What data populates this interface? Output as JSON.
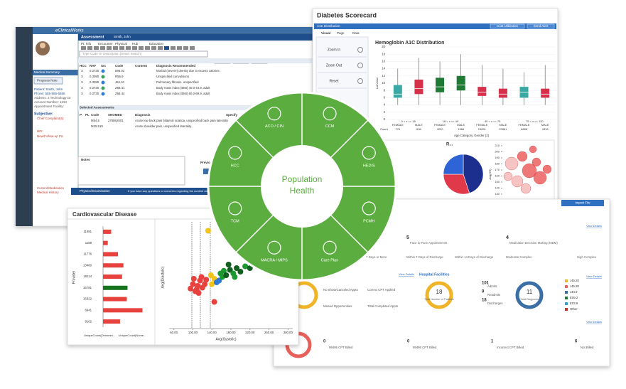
{
  "wheel": {
    "center": [
      "Population",
      "Health"
    ],
    "segments": [
      "ACO / CIN",
      "CCM",
      "HEDIS",
      "PCMH",
      "Care Plan",
      "MACRA / MIPS",
      "TCM",
      "HCC"
    ]
  },
  "ehr": {
    "app": "eClinicalWorks",
    "window": "Assessment",
    "patient_name": "Smith, John",
    "menu": [
      "Pt. Info",
      "Encounter",
      "Physical",
      "Hub",
      "Education"
    ],
    "search": "Type Code Or Description [Smart Search]",
    "nav": [
      "Prev Dx",
      "PL",
      "Copy"
    ],
    "columns": [
      "HCC",
      "RAF",
      "Src",
      "Code",
      "Content",
      "Diagnosis Recommended"
    ],
    "rows": [
      [
        "X",
        "0.2730",
        "596.01",
        "Morbid (severe) obesity due to excess calories"
      ],
      [
        "X",
        "0.3090",
        "R56.9",
        "Unspecified convulsions"
      ],
      [
        "X",
        "0.3090",
        "J84.10",
        "Pulmonary fibrosis, unspecified"
      ],
      [
        "X",
        "0.2730",
        "Z68.41",
        "Body mass index (BMI) 40.0-44.9, adult"
      ],
      [
        "X",
        "0.2730",
        "Z68.44",
        "Body mass index (BMI) 60.0-69.9, adult"
      ]
    ],
    "selected_title": "Selected Assessments",
    "selected_columns": [
      "P",
      "PL",
      "Code",
      "SNOMED",
      "Diagnosis",
      "Specify"
    ],
    "selected_rows": [
      [
        "M54.5",
        "278862001",
        "Acute low back pain bilateral sciatica, unspecified back pain laterality"
      ],
      [
        "M25.519",
        "",
        "Acute shoulder pain, unspecified laterality"
      ]
    ],
    "tabs": [
      "Medical Summary",
      "Progress Note"
    ],
    "patient": [
      "Patient: Smith, John",
      "Phone: 555-555-5555",
      "Address: 2 Technology Dr",
      "Account Number: 1234",
      "Appointment Facility:"
    ],
    "subjective": "Subjective:",
    "chief": "Chief Complaint(s):",
    "hpi": "HPI:",
    "followup": "New/Follow-up Pa",
    "history": [
      "Current Medication",
      "Medical History"
    ],
    "notes": "Notes",
    "previous": "Previous V",
    "physical": "Physical Examination",
    "message": "If you have any questions or concerns regarding the content on this page"
  },
  "diabetes": {
    "title": "Diabetes Scorecard",
    "tab": "A1C Distribution",
    "header_buttons": [
      "Cost Utilization",
      "Send Alert"
    ],
    "tabs": [
      "Visual",
      "Page",
      "Data"
    ],
    "buttons": [
      "Zoom In",
      "Zoom Out",
      "Reset"
    ],
    "chart": {
      "type": "box",
      "title": "Hemoglobin A1C Distribution",
      "y_label": "LabValue",
      "x_label": "Age Category, Gender (2)",
      "ylim": [
        0,
        20
      ],
      "yticks": [
        0,
        2,
        4,
        6,
        8,
        10,
        12,
        14,
        16,
        18,
        20
      ],
      "groups": [
        "0 < x <= 18",
        "18 < x <= 40",
        "40 < x <= 75",
        "75 < x <= 120"
      ],
      "categories": [
        "FEMALE",
        "MALE",
        "FEMALE",
        "MALE",
        "FEMALE",
        "MALE",
        "FEMALE",
        "MALE"
      ],
      "count_label": "Count",
      "counts": [
        776,
        606,
        4220,
        1988,
        21831,
        20561,
        6888,
        4316
      ],
      "colors": [
        "#3aa9a3",
        "#d6304a",
        "#1f7a33",
        "#1f7a33",
        "#d6304a",
        "#d6304a",
        "#3aa9a3",
        "#d6304a"
      ],
      "low": [
        4,
        4,
        4,
        4,
        4,
        4,
        4,
        4
      ],
      "q1": [
        6,
        7,
        7.5,
        8,
        6.5,
        6,
        6,
        6
      ],
      "median": [
        7,
        8.5,
        9,
        9.5,
        7.5,
        7,
        7.5,
        7
      ],
      "q3": [
        9.5,
        11,
        11.5,
        12,
        9,
        8.5,
        9,
        8.5
      ],
      "high": [
        14,
        17,
        16,
        18,
        15,
        14,
        13,
        15
      ]
    },
    "pie": {
      "type": "pie",
      "title": "R...",
      "values": [
        45,
        30,
        25
      ],
      "colors": [
        "#1c2f8f",
        "#e03a4a",
        "#2f64d6"
      ]
    },
    "bubble_y_label": "Avg(HR)",
    "bubble_yticks": [
      210,
      200,
      190,
      180,
      170,
      160,
      150,
      140,
      130,
      120,
      110
    ]
  },
  "dashboard": {
    "import": "Import File",
    "view": "View Details",
    "row1": [
      {
        "value": "5",
        "label": "Face to Face Appointments"
      },
      {
        "value": "4",
        "label": "Medication Decision Making (MDM)"
      }
    ],
    "row1_sub": [
      "7 Days or More",
      "Within 7 Days of Discharge",
      "Within 14 Days of Discharge",
      "Moderate Complex",
      "High Complex"
    ],
    "hospital": "Hospital Facilities",
    "visits": [
      "No Show/Canceled Appts",
      "Missed Opportunities",
      "Correct CPT Applied",
      "Total Completed Appts"
    ],
    "facility": [
      {
        "value": "101",
        "label": "Admits"
      },
      {
        "value": "9",
        "label": "Readmits"
      },
      {
        "value": "18",
        "label": "Discharges"
      }
    ],
    "patients": {
      "value": "18",
      "label": "Total Number of Patients"
    },
    "diagnosis": {
      "value": "11",
      "label": "Total Diagnosis"
    },
    "codes": [
      "J45.20",
      "J45.30",
      "J44.9",
      "E09.2",
      "E03.9",
      "Other"
    ],
    "billing": [
      {
        "value": "0",
        "label": "99495 CPT Billed"
      },
      {
        "value": "0",
        "label": "99496 CPT Billed"
      },
      {
        "value": "1",
        "label": "Incorrect CPT Billed"
      },
      {
        "value": "6",
        "label": "Not Billed"
      }
    ]
  },
  "cardio": {
    "title": "Cardiovascular Disease",
    "bars": {
      "type": "barh",
      "y_label": "Provider",
      "categories": [
        "11081",
        "1188",
        "11776",
        "13480",
        "15114",
        "16781",
        "16322",
        "6941",
        "9162"
      ],
      "values": [
        12,
        7,
        22,
        30,
        28,
        36,
        35,
        58,
        25
      ],
      "colors": [
        "#e8423f",
        "#e8423f",
        "#e8423f",
        "#e8423f",
        "#e8423f",
        "#16741f",
        "#e8423f",
        "#e8423f",
        "#e8423f"
      ],
      "xlim": [
        0,
        70
      ],
      "x_labels": [
        "UniqueCount(Denomin...",
        "UniqueCount(Nume..."
      ]
    },
    "scatter": {
      "type": "scatter",
      "x_label": "Avg(Systolic)",
      "y_label": "Avg(Diastolic)",
      "xlim": [
        50,
        310
      ],
      "ylim": [
        30,
        150
      ],
      "xticks": [
        {
          "value": 60,
          "label": "60.00"
        },
        {
          "value": 100,
          "label": "100.00"
        },
        {
          "value": 140,
          "label": "140.00"
        },
        {
          "value": 180,
          "label": "180.00"
        },
        {
          "value": 220,
          "label": "220.00"
        },
        {
          "value": 260,
          "label": "260.00"
        },
        {
          "value": 300,
          "label": "300.00"
        }
      ],
      "x": [
        95,
        100,
        105,
        110,
        115,
        120,
        125,
        112,
        102,
        118,
        108,
        128,
        140,
        145,
        150,
        138,
        155,
        158,
        162,
        165,
        170,
        178,
        185,
        192,
        200,
        210,
        220,
        175,
        188,
        132,
        145
      ],
      "y": [
        75,
        80,
        72,
        78,
        84,
        76,
        80,
        70,
        86,
        88,
        74,
        85,
        80,
        86,
        82,
        90,
        84,
        92,
        88,
        95,
        90,
        96,
        92,
        98,
        94,
        100,
        98,
        102,
        88,
        140,
        60
      ],
      "point_colors": [
        "#e8423f",
        "#e8423f",
        "#e8423f",
        "#e8423f",
        "#e8423f",
        "#e8423f",
        "#e8423f",
        "#e8423f",
        "#e8423f",
        "#e8423f",
        "#e8423f",
        "#e8423f",
        "#f2c418",
        "#f2c418",
        "#2e7bd1",
        "#f2c418",
        "#2e7bd1",
        "#1a9a2e",
        "#1a9a2e",
        "#1a9a2e",
        "#115e1f",
        "#115e1f",
        "#1a9a2e",
        "#115e1f",
        "#115e1f",
        "#1a9a2e",
        "#115e1f",
        "#115e1f",
        "#1a9a2e",
        "#f2c418",
        "#e8423f"
      ]
    }
  }
}
